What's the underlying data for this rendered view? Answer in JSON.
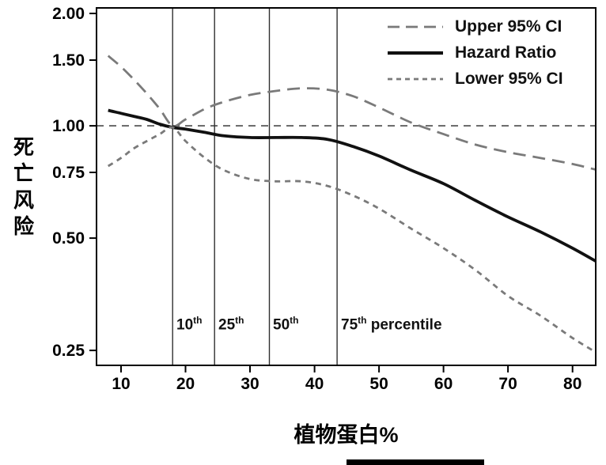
{
  "figure": {
    "background": "#ffffff",
    "axis_color": "#000000",
    "ci_color": "#7a7a7a",
    "hazard_color": "#111111"
  },
  "chart_data": {
    "type": "line",
    "title": "",
    "xlabel": "植物蛋白%",
    "ylabel": "死亡风险",
    "x_axis": {
      "ticks": [
        10,
        20,
        30,
        40,
        50,
        60,
        70,
        80
      ],
      "lim": [
        6.2,
        83.6
      ],
      "scale": "linear"
    },
    "y_axis": {
      "ticks": [
        2.0,
        1.5,
        1.0,
        0.75,
        0.5,
        0.25
      ],
      "tick_labels": [
        "2.00",
        "1.50",
        "1.00",
        "0.75",
        "0.50",
        "0.25"
      ],
      "lim": [
        0.228,
        2.07
      ],
      "scale": "log"
    },
    "reference_line": {
      "y": 1.0,
      "style": "dashed",
      "color": "#4a4a4a"
    },
    "percentile_lines": [
      {
        "x": 18,
        "num": "10",
        "sup": "th",
        "rest": ""
      },
      {
        "x": 24.5,
        "num": "25",
        "sup": "th",
        "rest": ""
      },
      {
        "x": 33,
        "num": "50",
        "sup": "th",
        "rest": ""
      },
      {
        "x": 43.5,
        "num": "75",
        "sup": "th",
        "rest": " percentile"
      }
    ],
    "x": [
      8,
      10,
      12,
      14,
      16,
      18,
      20,
      23,
      26,
      30,
      34,
      38,
      42,
      46,
      50,
      55,
      60,
      65,
      70,
      75,
      80,
      84
    ],
    "series": [
      {
        "name": "Upper 95% CI",
        "style": "long-dash",
        "color": "#7a7a7a",
        "width": 2.8,
        "values": [
          1.54,
          1.44,
          1.33,
          1.22,
          1.11,
          1.0,
          1.04,
          1.11,
          1.16,
          1.21,
          1.24,
          1.26,
          1.25,
          1.2,
          1.12,
          1.02,
          0.95,
          0.89,
          0.85,
          0.82,
          0.79,
          0.76
        ]
      },
      {
        "name": "Hazard Ratio",
        "style": "solid",
        "color": "#111111",
        "width": 3.8,
        "values": [
          1.1,
          1.08,
          1.06,
          1.04,
          1.01,
          0.99,
          0.98,
          0.96,
          0.94,
          0.93,
          0.93,
          0.93,
          0.92,
          0.88,
          0.83,
          0.76,
          0.7,
          0.63,
          0.57,
          0.52,
          0.47,
          0.43
        ]
      },
      {
        "name": "Lower 95% CI",
        "style": "short-dash",
        "color": "#7a7a7a",
        "width": 2.8,
        "values": [
          0.78,
          0.82,
          0.87,
          0.91,
          0.95,
          0.99,
          0.91,
          0.82,
          0.76,
          0.72,
          0.71,
          0.71,
          0.69,
          0.65,
          0.6,
          0.53,
          0.47,
          0.41,
          0.35,
          0.31,
          0.27,
          0.245
        ]
      }
    ],
    "legend": {
      "position": "top-right"
    }
  }
}
